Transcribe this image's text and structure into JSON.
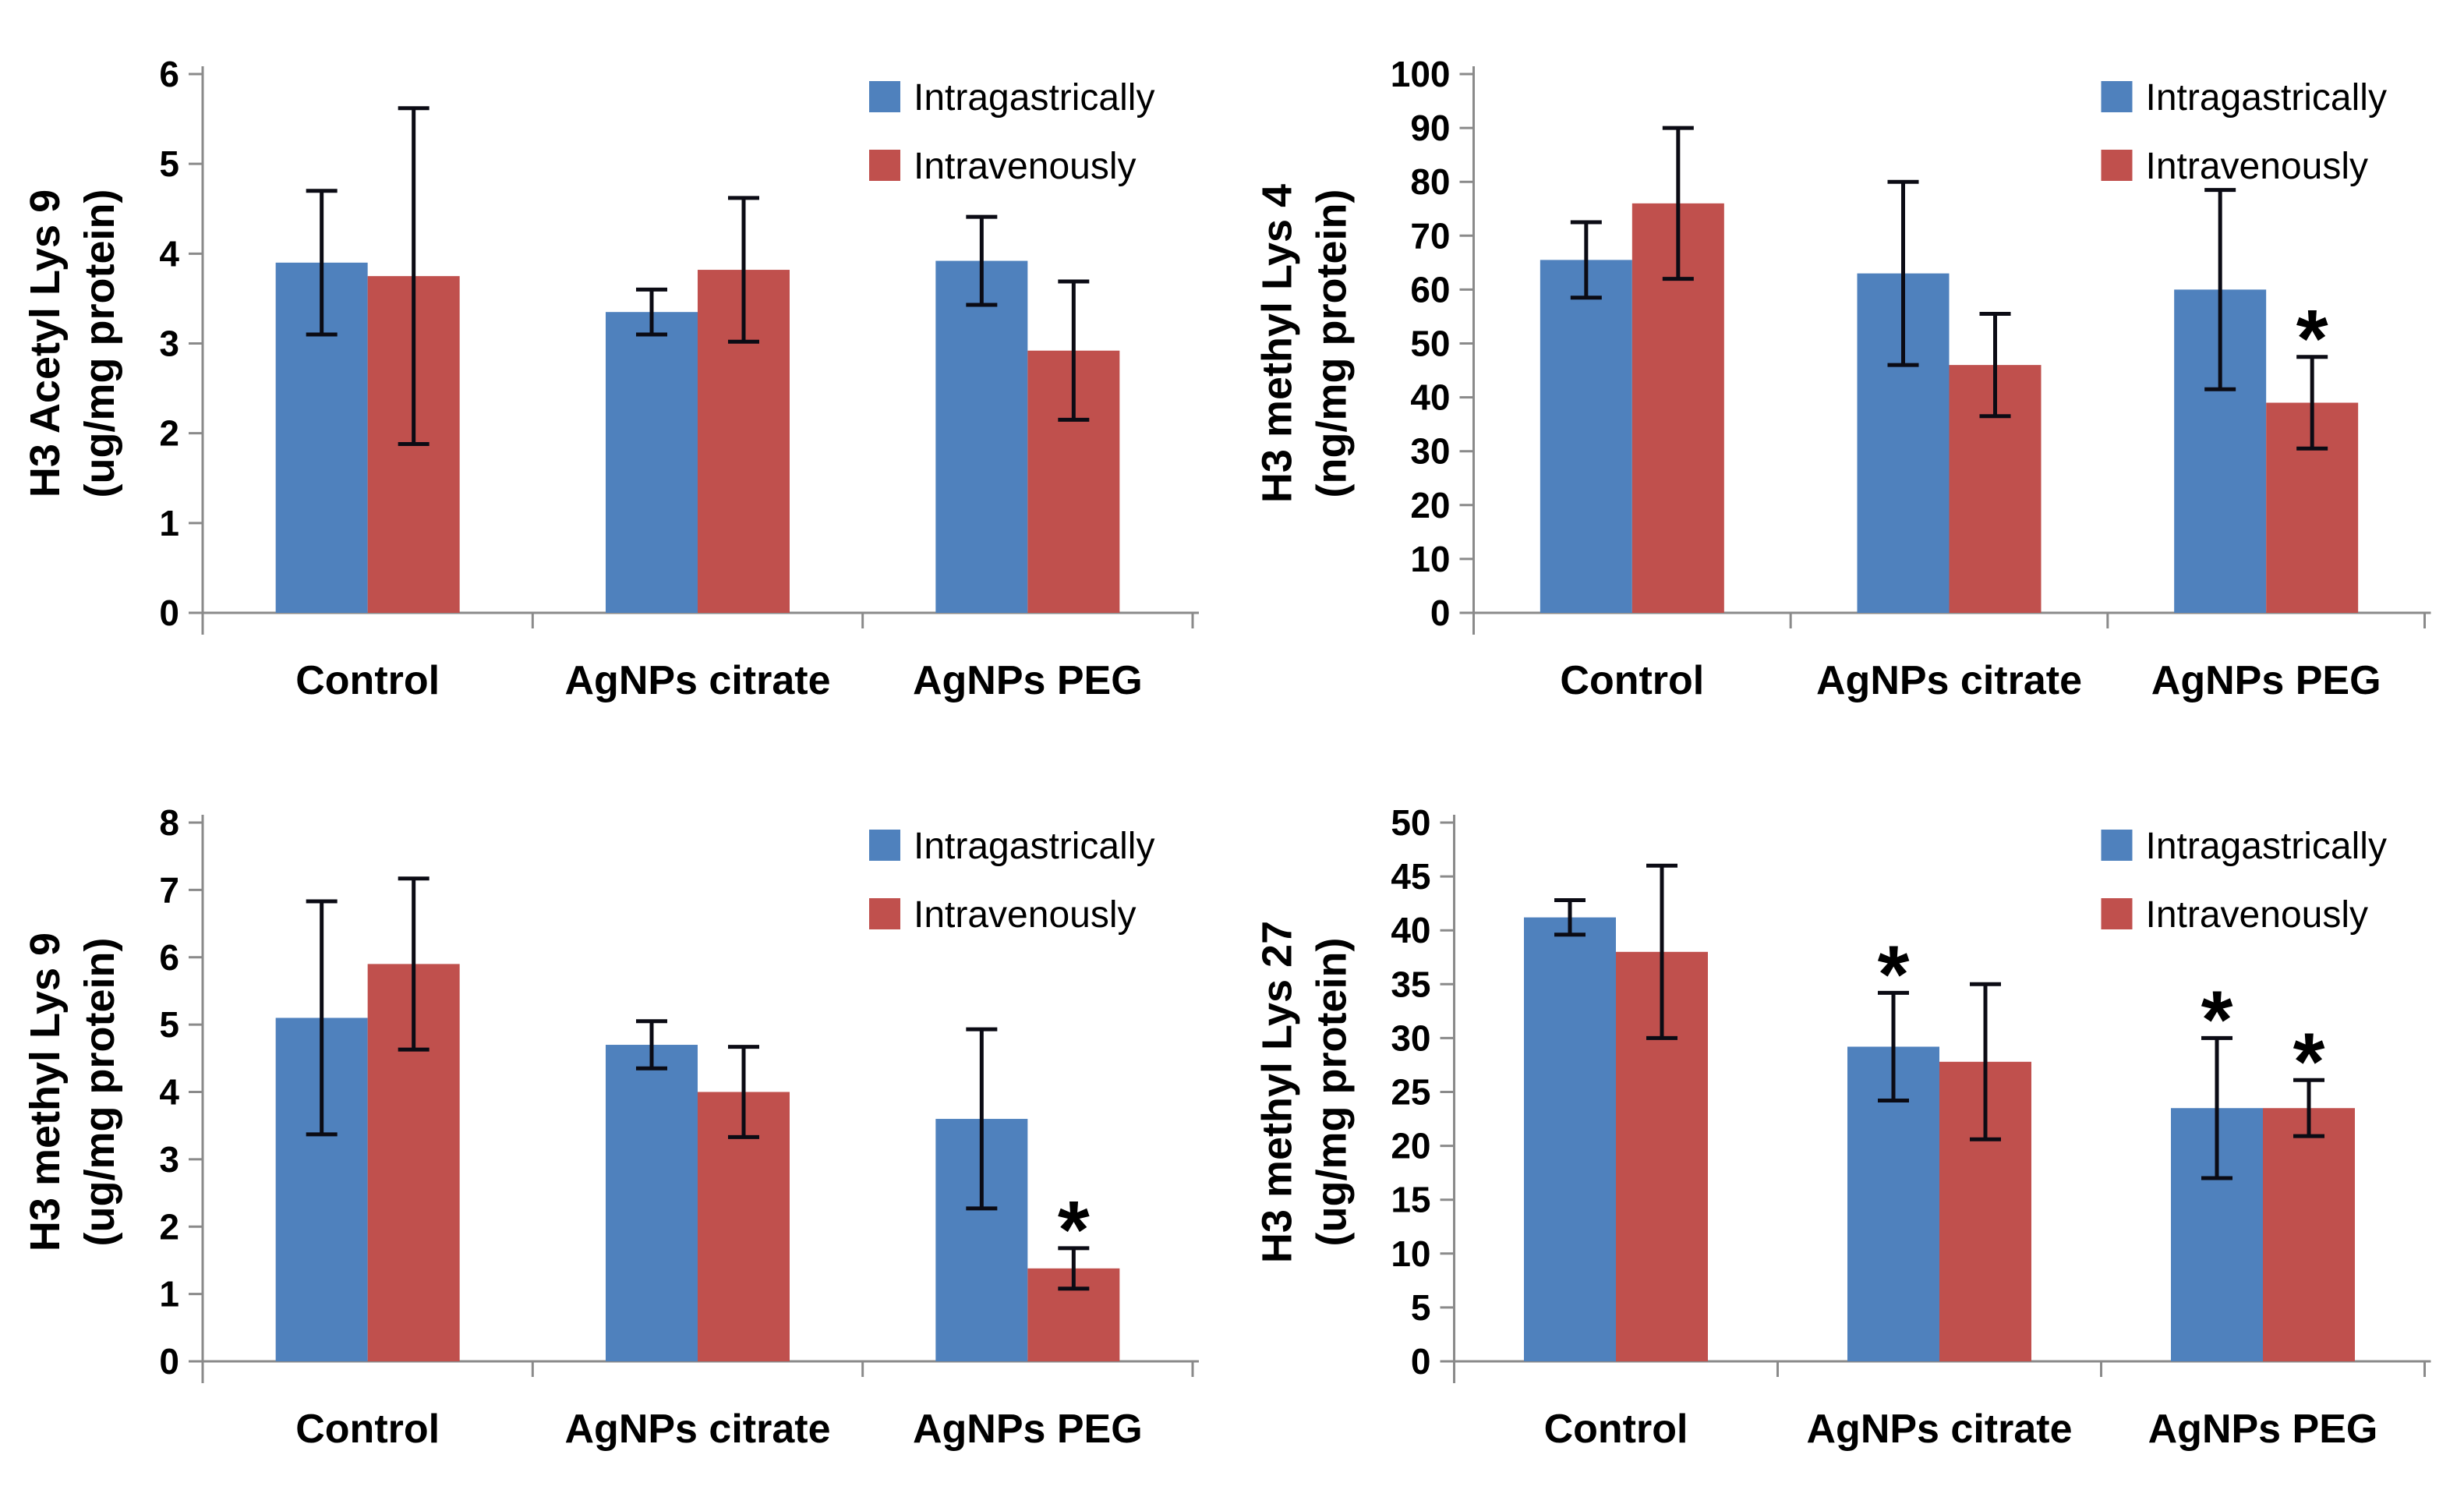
{
  "figure": {
    "background": "#ffffff",
    "axis_color": "#8a8a8a",
    "error_bar_color": "#0b0b14",
    "text_color": "#000000",
    "significance_marker": "*"
  },
  "legend": {
    "position": "top-right",
    "items": [
      {
        "label": "Intragastrically",
        "color": "#4F81BD"
      },
      {
        "label": "Intravenously",
        "color": "#C0504D"
      }
    ]
  },
  "chart_data": [
    {
      "id": "h3-acetyl-lys9",
      "type": "bar",
      "title": "",
      "ylabel": "H3 Acetyl Lys 9 (ug/mg protein)",
      "ylabel_lines": [
        "H3 Acetyl Lys 9",
        "(ug/mg protein)"
      ],
      "ylim": [
        0,
        6
      ],
      "ytick_step": 1,
      "grid": false,
      "legend_position": "top-right",
      "categories": [
        "Control",
        "AgNPs citrate",
        "AgNPs PEG"
      ],
      "series": [
        {
          "name": "Intragastrically",
          "color": "#4F81BD",
          "values": [
            3.9,
            3.35,
            3.92
          ],
          "errors": [
            0.8,
            0.25,
            0.49
          ],
          "significant": [
            false,
            false,
            false
          ]
        },
        {
          "name": "Intravenously",
          "color": "#C0504D",
          "values": [
            3.75,
            3.82,
            2.92
          ],
          "errors": [
            1.87,
            0.8,
            0.77
          ],
          "significant": [
            false,
            false,
            false
          ]
        }
      ]
    },
    {
      "id": "h3-methyl-lys4",
      "type": "bar",
      "title": "",
      "ylabel": "H3 methyl Lys 4 (ng/mg protein)",
      "ylabel_lines": [
        "H3 methyl Lys 4",
        "(ng/mg protein)"
      ],
      "ylim": [
        0,
        100
      ],
      "ytick_step": 10,
      "grid": false,
      "legend_position": "top-right",
      "categories": [
        "Control",
        "AgNPs citrate",
        "AgNPs PEG"
      ],
      "series": [
        {
          "name": "Intragastrically",
          "color": "#4F81BD",
          "values": [
            65.5,
            63,
            60
          ],
          "errors": [
            7,
            17,
            18.5
          ],
          "significant": [
            false,
            false,
            false
          ]
        },
        {
          "name": "Intravenously",
          "color": "#C0504D",
          "values": [
            76,
            46,
            39
          ],
          "errors": [
            14,
            9.5,
            8.5
          ],
          "significant": [
            false,
            false,
            true
          ]
        }
      ]
    },
    {
      "id": "h3-methyl-lys9",
      "type": "bar",
      "title": "",
      "ylabel": "H3 methyl Lys 9 (ug/mg protein)",
      "ylabel_lines": [
        "H3 methyl Lys 9",
        "(ug/mg protein)"
      ],
      "ylim": [
        0,
        8
      ],
      "ytick_step": 1,
      "grid": false,
      "legend_position": "top-right",
      "categories": [
        "Control",
        "AgNPs citrate",
        "AgNPs PEG"
      ],
      "series": [
        {
          "name": "Intragastrically",
          "color": "#4F81BD",
          "values": [
            5.1,
            4.7,
            3.6
          ],
          "errors": [
            1.73,
            0.35,
            1.33
          ],
          "significant": [
            false,
            false,
            false
          ]
        },
        {
          "name": "Intravenously",
          "color": "#C0504D",
          "values": [
            5.9,
            4.0,
            1.38
          ],
          "errors": [
            1.27,
            0.67,
            0.3
          ],
          "significant": [
            false,
            false,
            true
          ]
        }
      ]
    },
    {
      "id": "h3-methyl-lys27",
      "type": "bar",
      "title": "",
      "ylabel": "H3 methyl Lys 27 (ug/mg protein)",
      "ylabel_lines": [
        "H3 methyl Lys 27",
        "(ug/mg protein)"
      ],
      "ylim": [
        0,
        50
      ],
      "ytick_step": 5,
      "grid": false,
      "legend_position": "top-right",
      "categories": [
        "Control",
        "AgNPs citrate",
        "AgNPs PEG"
      ],
      "series": [
        {
          "name": "Intragastrically",
          "color": "#4F81BD",
          "values": [
            41.2,
            29.2,
            23.5
          ],
          "errors": [
            1.6,
            5,
            6.5
          ],
          "significant": [
            false,
            true,
            true
          ]
        },
        {
          "name": "Intravenously",
          "color": "#C0504D",
          "values": [
            38,
            27.8,
            23.5
          ],
          "errors": [
            8,
            7.2,
            2.6
          ],
          "significant": [
            false,
            false,
            true
          ]
        }
      ]
    }
  ]
}
